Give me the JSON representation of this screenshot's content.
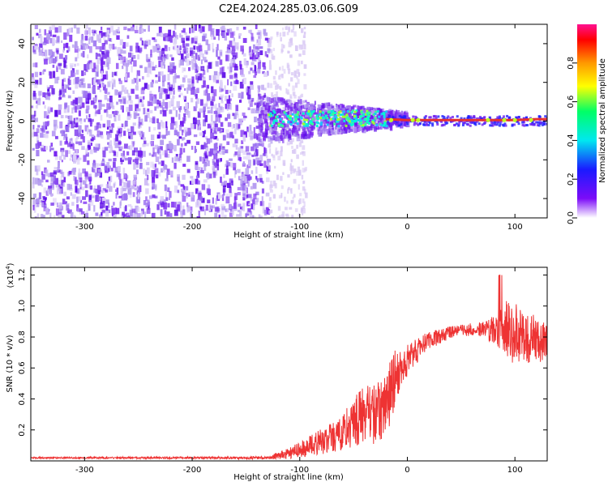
{
  "title": "C2E4.2024.285.03.06.G09",
  "colors": {
    "trace": "#ee3333",
    "ridge": "#e83030",
    "noise_light": "#d8c8f4",
    "noise_dark": "#7a1cf0",
    "cyan": "#10e0e8",
    "axis": "#000000"
  },
  "chart_data": [
    {
      "type": "heatmap",
      "xlabel": "Height of straight line (km)",
      "ylabel": "Frequency (Hz)",
      "xlim": [
        -350,
        130
      ],
      "ylim": [
        -50,
        50
      ],
      "x_ticks": [
        -300,
        -200,
        -100,
        0,
        100
      ],
      "y_ticks": [
        -40,
        -20,
        0,
        20,
        40
      ],
      "colorbar": {
        "label": "Normalized spectral amplitude",
        "range": [
          0,
          1
        ],
        "ticks": [
          "0.0",
          "0.2",
          "0.4",
          "0.6",
          "0.8"
        ],
        "colors": [
          "#ffffff",
          "#7c0cf8",
          "#1a1aff",
          "#00e8f0",
          "#00ff66",
          "#ffff00",
          "#ff9900",
          "#ff0000",
          "#ff1090"
        ]
      },
      "ridge": {
        "x": [
          -130,
          -100,
          -80,
          -60,
          -40,
          -20,
          0,
          20,
          40,
          60,
          80,
          100,
          120,
          130
        ],
        "y": [
          4,
          3,
          2,
          2,
          2,
          1,
          0.5,
          0.5,
          0.5,
          0.5,
          0.5,
          0.5,
          1,
          1
        ]
      },
      "grid": false
    },
    {
      "type": "line",
      "xlabel": "Height of straight line (km)",
      "ylabel": "SNR (10 * v/v)",
      "y_multiplier": "(x10",
      "y_multiplier_exp": "4",
      "y_multiplier_close": ")",
      "xlim": [
        -350,
        130
      ],
      "ylim": [
        0,
        1.25
      ],
      "x_ticks": [
        -300,
        -200,
        -100,
        0,
        100
      ],
      "y_ticks": [
        "0.2",
        "0.4",
        "0.6",
        "0.8",
        "1.0",
        "1.2"
      ],
      "series": [
        {
          "x": [
            -350,
            -300,
            -250,
            -200,
            -160,
            -130,
            -115,
            -100,
            -90,
            -80,
            -70,
            -60,
            -50,
            -40,
            -30,
            -20,
            -15,
            -10,
            -5,
            0,
            10,
            20,
            30,
            40,
            50,
            60,
            70,
            80,
            90,
            100,
            110,
            120,
            130
          ],
          "y": [
            0.02,
            0.02,
            0.02,
            0.02,
            0.02,
            0.02,
            0.04,
            0.07,
            0.1,
            0.12,
            0.15,
            0.18,
            0.25,
            0.3,
            0.3,
            0.35,
            0.5,
            0.55,
            0.6,
            0.65,
            0.72,
            0.78,
            0.8,
            0.83,
            0.84,
            0.85,
            0.85,
            0.85,
            0.86,
            0.82,
            0.8,
            0.78,
            0.77
          ],
          "spread": [
            0.005,
            0.005,
            0.006,
            0.006,
            0.008,
            0.01,
            0.03,
            0.05,
            0.07,
            0.09,
            0.1,
            0.12,
            0.16,
            0.18,
            0.2,
            0.2,
            0.25,
            0.15,
            0.12,
            0.1,
            0.08,
            0.06,
            0.05,
            0.04,
            0.04,
            0.04,
            0.05,
            0.1,
            0.18,
            0.2,
            0.18,
            0.15,
            0.12
          ]
        }
      ],
      "grid": false
    }
  ]
}
